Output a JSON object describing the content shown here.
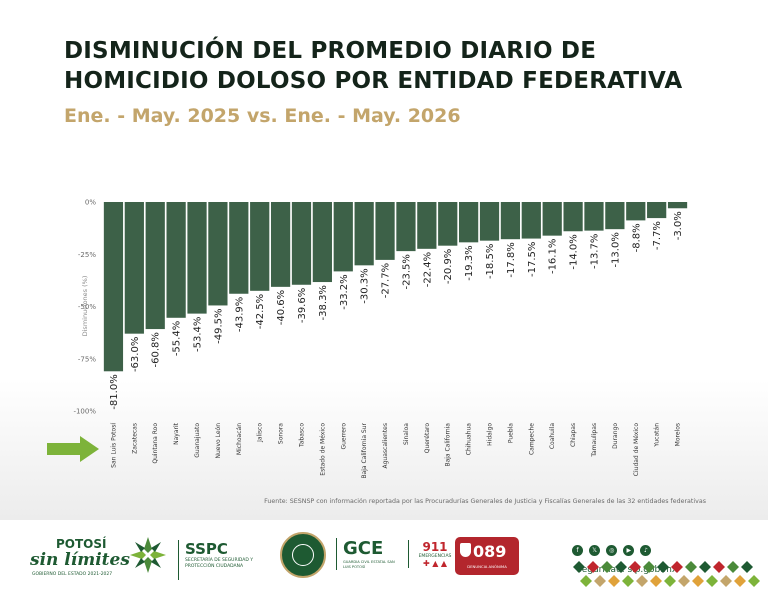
{
  "header": {
    "title_line1": "DISMINUCIÓN DEL PROMEDIO DIARIO DE",
    "title_line2": "HOMICIDIO DOLOSO POR ENTIDAD FEDERATIVA",
    "subtitle": "Ene. - May. 2025 vs. Ene. - May. 2026"
  },
  "chart_data": {
    "type": "bar",
    "title": "DISMINUCIÓN DEL PROMEDIO DIARIO DE HOMICIDIO DOLOSO POR ENTIDAD FEDERATIVA",
    "subtitle": "Ene. - May. 2025 vs. Ene. - May. 2026",
    "xlabel": "",
    "ylabel": "Disminuciones (%)",
    "ylim": [
      -100,
      0
    ],
    "yticks": [
      0,
      -25,
      -50,
      -75,
      -100
    ],
    "ytick_labels": [
      "0%",
      "-25%",
      "-50%",
      "-75%",
      "-100%"
    ],
    "grid": false,
    "bar_color": "#3d6148",
    "highlight_arrow_category": "San Luis Potosí",
    "arrow_color": "#7db33a",
    "categories": [
      "San Luis Potosí",
      "Zacatecas",
      "Quintana Roo",
      "Nayarit",
      "Guanajuato",
      "Nuevo León",
      "Michoacán",
      "Jalisco",
      "Sonora",
      "Tabasco",
      "Estado de México",
      "Guerrero",
      "Baja California Sur",
      "Aguascalientes",
      "Sinaloa",
      "Querétaro",
      "Baja California",
      "Chihuahua",
      "Hidalgo",
      "Puebla",
      "Campeche",
      "Coahuila",
      "Chiapas",
      "Tamaulipas",
      "Durango",
      "Ciudad de México",
      "Yucatán",
      "Morelos"
    ],
    "values": [
      -81.0,
      -63.0,
      -60.8,
      -55.4,
      -53.4,
      -49.5,
      -43.9,
      -42.5,
      -40.6,
      -39.6,
      -38.3,
      -33.2,
      -30.3,
      -27.7,
      -23.5,
      -22.4,
      -20.9,
      -19.3,
      -18.5,
      -17.8,
      -17.5,
      -16.1,
      -14.0,
      -13.7,
      -13.0,
      -8.8,
      -7.7,
      -3.0
    ],
    "value_labels": [
      "-81.0%",
      "-63.0%",
      "-60.8%",
      "-55.4%",
      "-53.4%",
      "-49.5%",
      "-43.9%",
      "-42.5%",
      "-40.6%",
      "-39.6%",
      "-38.3%",
      "-33.2%",
      "-30.3%",
      "-27.7%",
      "-23.5%",
      "-22.4%",
      "-20.9%",
      "-19.3%",
      "-18.5%",
      "-17.8%",
      "-17.5%",
      "-16.1%",
      "-14.0%",
      "-13.7%",
      "-13.0%",
      "-8.8%",
      "-7.7%",
      "-3.0%"
    ]
  },
  "source_note": "Fuente: SESNSP con información reportada por las Procuradurías Generales de Justicia y Fiscalías Generales de las 32 entidades federativas",
  "footer": {
    "potosi_top": "POTOSÍ",
    "potosi_main": "sin límites",
    "potosi_small": "GOBIERNO DEL ESTADO 2021-2027",
    "sspc_main": "SSPC",
    "sspc_small": "SECRETARÍA DE SEGURIDAD Y PROTECCIÓN CIUDADANA",
    "gce_main": "GCE",
    "gce_small": "GUARDIA CIVIL ESTATAL SAN LUIS POTOSÍ",
    "e911_main": "911",
    "e911_small": "EMERGENCIAS",
    "d089_main": "089",
    "d089_small": "DENUNCIA ANÓNIMA",
    "social_icons": [
      "facebook-icon",
      "x-icon",
      "instagram-icon",
      "youtube-icon",
      "tiktok-icon"
    ],
    "social_glyphs": [
      "f",
      "𝕏",
      "◎",
      "▶",
      "♪"
    ],
    "website": "seguridad. slp.gob.mx"
  }
}
